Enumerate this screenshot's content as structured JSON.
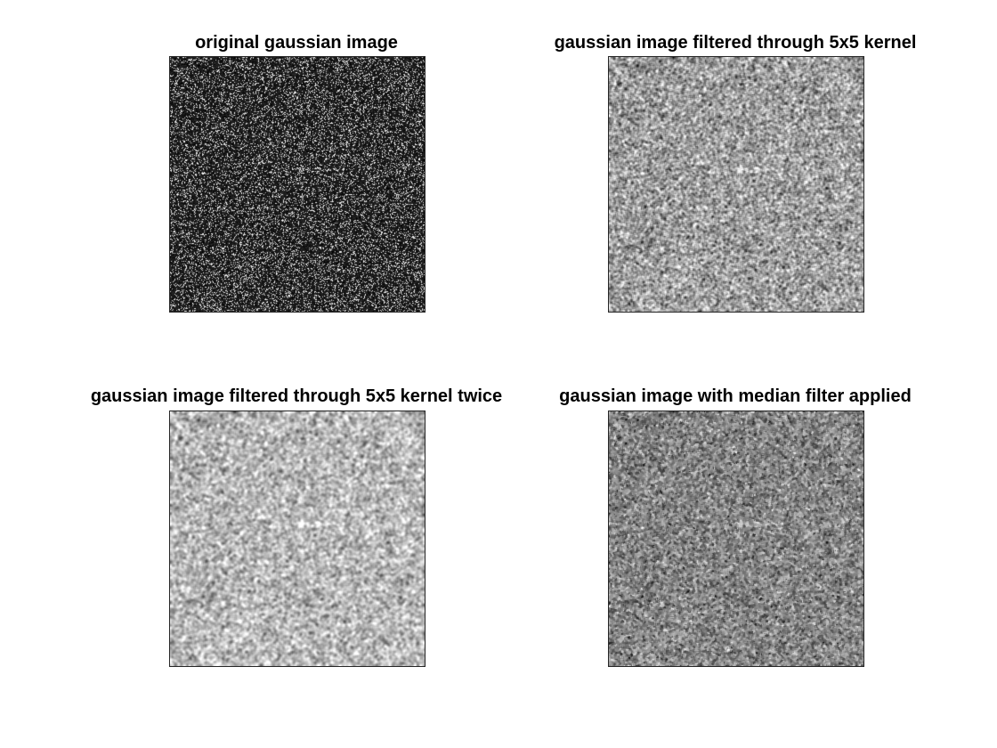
{
  "figure": {
    "background": "#ffffff",
    "panels": [
      {
        "id": "original",
        "title": "original gaussian image",
        "noise": {
          "type": "sparse-bright-speckle",
          "mean_gray": 0.18,
          "contrast": "high",
          "smoothing": "none"
        }
      },
      {
        "id": "filtered-once",
        "title": "gaussian image filtered through 5x5 kernel",
        "noise": {
          "type": "gaussian",
          "mean_gray": 0.62,
          "contrast": "medium",
          "smoothing": "5x5 blur"
        }
      },
      {
        "id": "filtered-twice",
        "title": "gaussian image filtered through 5x5 kernel twice",
        "noise": {
          "type": "gaussian",
          "mean_gray": 0.72,
          "contrast": "low",
          "smoothing": "5x5 blur x2"
        }
      },
      {
        "id": "median",
        "title": "gaussian image with median filter applied",
        "noise": {
          "type": "gaussian",
          "mean_gray": 0.52,
          "contrast": "medium",
          "smoothing": "median"
        }
      }
    ]
  }
}
